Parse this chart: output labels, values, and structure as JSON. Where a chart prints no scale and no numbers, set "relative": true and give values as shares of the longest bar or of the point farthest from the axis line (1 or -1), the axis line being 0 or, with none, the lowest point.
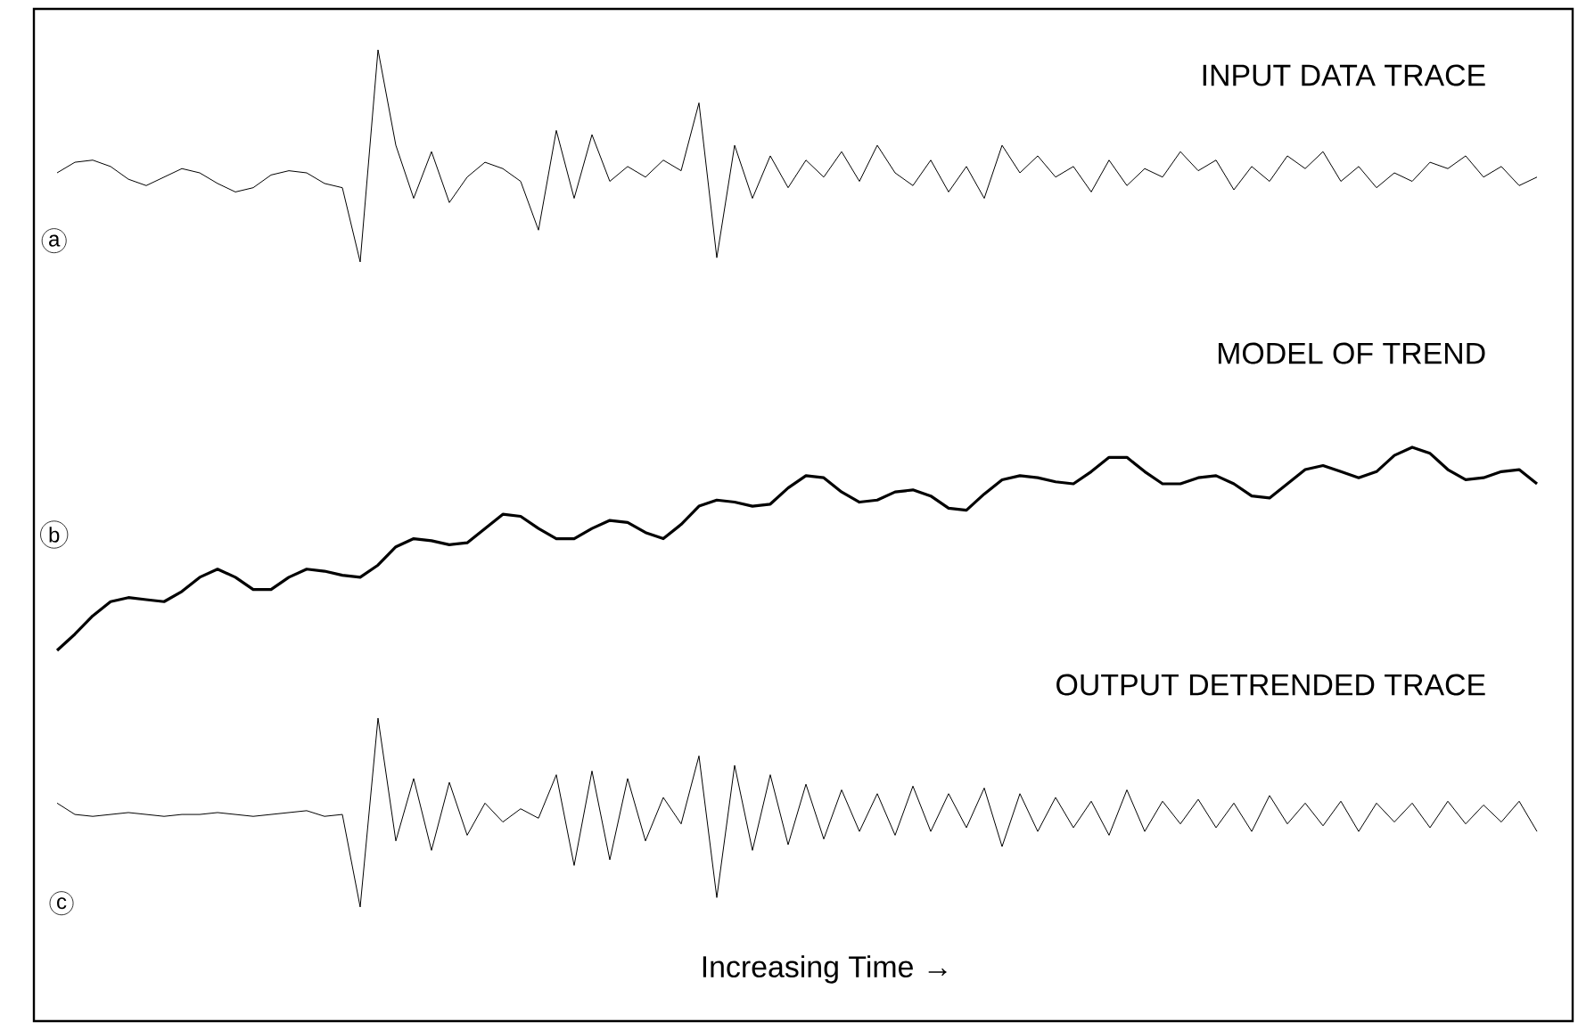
{
  "chart_data": [
    {
      "type": "line",
      "title": "INPUT DATA TRACE",
      "annotations": [
        "a"
      ],
      "relative": true,
      "color": "#000000",
      "categories": [
        null,
        null,
        null,
        null,
        null,
        null,
        null,
        null,
        null,
        null,
        null,
        null,
        null,
        null,
        null,
        null,
        null,
        null,
        null,
        null,
        null,
        null,
        null,
        null,
        null,
        null,
        null,
        null,
        null,
        null,
        null,
        null,
        null,
        null,
        null,
        null,
        null,
        null,
        null,
        null,
        null,
        null,
        null,
        null,
        null,
        null,
        null,
        null,
        null,
        null,
        null,
        null,
        null,
        null,
        null,
        null,
        null,
        null,
        null,
        null,
        null,
        null,
        null,
        null,
        null,
        null,
        null,
        null,
        null,
        null,
        null,
        null,
        null,
        null,
        null,
        null,
        null,
        null,
        null,
        null,
        null,
        null,
        null,
        null
      ],
      "values": [
        0.42,
        0.47,
        0.48,
        0.45,
        0.39,
        0.36,
        0.4,
        0.44,
        0.42,
        0.37,
        0.33,
        0.35,
        0.41,
        0.43,
        0.42,
        0.37,
        0.35,
        0.0,
        1.0,
        0.55,
        0.3,
        0.52,
        0.28,
        0.4,
        0.47,
        0.44,
        0.38,
        0.15,
        0.62,
        0.3,
        0.6,
        0.38,
        0.45,
        0.4,
        0.48,
        0.43,
        0.75,
        0.02,
        0.55,
        0.3,
        0.5,
        0.35,
        0.48,
        0.4,
        0.52,
        0.38,
        0.55,
        0.42,
        0.36,
        0.48,
        0.33,
        0.45,
        0.3,
        0.55,
        0.42,
        0.5,
        0.4,
        0.45,
        0.33,
        0.48,
        0.36,
        0.44,
        0.4,
        0.52,
        0.43,
        0.48,
        0.34,
        0.45,
        0.38,
        0.5,
        0.44,
        0.52,
        0.38,
        0.45,
        0.35,
        0.42,
        0.38,
        0.47,
        0.44,
        0.5,
        0.4,
        0.45,
        0.36,
        0.4
      ]
    },
    {
      "type": "line",
      "title": "MODEL OF TREND",
      "annotations": [
        "b"
      ],
      "relative": true,
      "color": "#000000",
      "categories": [
        null,
        null,
        null,
        null,
        null,
        null,
        null,
        null,
        null,
        null,
        null,
        null,
        null,
        null,
        null,
        null,
        null,
        null,
        null,
        null,
        null,
        null,
        null,
        null,
        null,
        null,
        null,
        null,
        null,
        null,
        null,
        null,
        null,
        null,
        null,
        null,
        null,
        null,
        null,
        null,
        null,
        null,
        null,
        null,
        null,
        null,
        null,
        null,
        null,
        null,
        null,
        null,
        null,
        null,
        null,
        null,
        null,
        null,
        null,
        null,
        null,
        null,
        null,
        null,
        null,
        null,
        null,
        null,
        null,
        null,
        null,
        null,
        null,
        null,
        null,
        null,
        null,
        null,
        null,
        null,
        null,
        null,
        null,
        null
      ],
      "values": [
        0.0,
        0.08,
        0.17,
        0.24,
        0.26,
        0.25,
        0.24,
        0.29,
        0.36,
        0.4,
        0.36,
        0.3,
        0.3,
        0.36,
        0.4,
        0.39,
        0.37,
        0.36,
        0.42,
        0.51,
        0.55,
        0.54,
        0.52,
        0.53,
        0.6,
        0.67,
        0.66,
        0.6,
        0.55,
        0.55,
        0.6,
        0.64,
        0.63,
        0.58,
        0.55,
        0.62,
        0.71,
        0.74,
        0.73,
        0.71,
        0.72,
        0.8,
        0.86,
        0.85,
        0.78,
        0.73,
        0.74,
        0.78,
        0.79,
        0.76,
        0.7,
        0.69,
        0.77,
        0.84,
        0.86,
        0.85,
        0.83,
        0.82,
        0.88,
        0.95,
        0.95,
        0.88,
        0.82,
        0.82,
        0.85,
        0.86,
        0.82,
        0.76,
        0.75,
        0.82,
        0.89,
        0.91,
        0.88,
        0.85,
        0.88,
        0.96,
        1.0,
        0.97,
        0.89,
        0.84,
        0.85,
        0.88,
        0.89,
        0.82
      ]
    },
    {
      "type": "line",
      "title": "OUTPUT DETRENDED TRACE",
      "xlabel": "Increasing Time →",
      "annotations": [
        "c"
      ],
      "relative": true,
      "color": "#000000",
      "categories": [
        null,
        null,
        null,
        null,
        null,
        null,
        null,
        null,
        null,
        null,
        null,
        null,
        null,
        null,
        null,
        null,
        null,
        null,
        null,
        null,
        null,
        null,
        null,
        null,
        null,
        null,
        null,
        null,
        null,
        null,
        null,
        null,
        null,
        null,
        null,
        null,
        null,
        null,
        null,
        null,
        null,
        null,
        null,
        null,
        null,
        null,
        null,
        null,
        null,
        null,
        null,
        null,
        null,
        null,
        null,
        null,
        null,
        null,
        null,
        null,
        null,
        null,
        null,
        null,
        null,
        null,
        null,
        null,
        null,
        null,
        null,
        null,
        null,
        null,
        null,
        null,
        null,
        null,
        null,
        null,
        null,
        null,
        null,
        null
      ],
      "values": [
        0.55,
        0.49,
        0.48,
        0.49,
        0.5,
        0.49,
        0.48,
        0.49,
        0.49,
        0.5,
        0.49,
        0.48,
        0.49,
        0.5,
        0.51,
        0.48,
        0.49,
        0.0,
        1.0,
        0.35,
        0.68,
        0.3,
        0.66,
        0.38,
        0.55,
        0.45,
        0.52,
        0.47,
        0.7,
        0.22,
        0.72,
        0.25,
        0.68,
        0.35,
        0.58,
        0.44,
        0.8,
        0.05,
        0.75,
        0.3,
        0.7,
        0.33,
        0.65,
        0.36,
        0.62,
        0.4,
        0.6,
        0.38,
        0.64,
        0.4,
        0.6,
        0.42,
        0.63,
        0.32,
        0.6,
        0.4,
        0.58,
        0.42,
        0.56,
        0.38,
        0.62,
        0.4,
        0.56,
        0.44,
        0.57,
        0.42,
        0.55,
        0.4,
        0.59,
        0.44,
        0.55,
        0.43,
        0.56,
        0.4,
        0.55,
        0.45,
        0.55,
        0.42,
        0.56,
        0.44,
        0.54,
        0.45,
        0.56,
        0.4
      ]
    }
  ]
}
